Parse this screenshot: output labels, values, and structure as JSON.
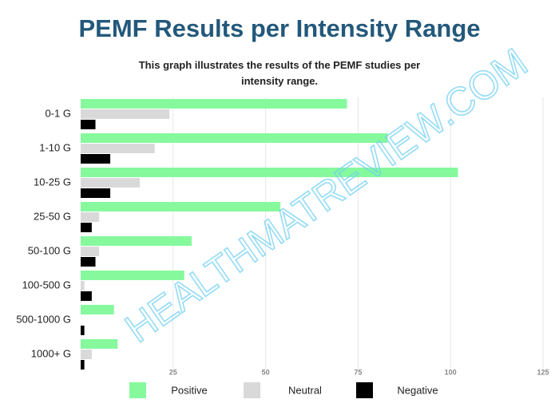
{
  "title": "PEMF Results per Intensity Range",
  "subtitle": "This graph illustrates the results of the PEMF studies per intensity range.",
  "watermark": "HEALTHMATREVIEW.COM",
  "chart_data": {
    "type": "bar",
    "orientation": "horizontal",
    "categories": [
      "0-1 G",
      "1-10 G",
      "10-25 G",
      "25-50 G",
      "50-100 G",
      "100-500 G",
      "500-1000 G",
      "1000+ G"
    ],
    "series": [
      {
        "name": "Positive",
        "color": "#86f99d",
        "values": [
          72,
          83,
          102,
          54,
          30,
          28,
          9,
          10
        ]
      },
      {
        "name": "Neutral",
        "color": "#d9d9d9",
        "values": [
          24,
          20,
          16,
          5,
          5,
          1,
          0,
          3
        ]
      },
      {
        "name": "Negative",
        "color": "#000000",
        "values": [
          4,
          8,
          8,
          3,
          4,
          3,
          1,
          1
        ]
      }
    ],
    "xlim": [
      0,
      125
    ],
    "xticks": [
      25,
      50,
      75,
      100,
      125
    ],
    "grid": true,
    "legend": "bottom"
  }
}
